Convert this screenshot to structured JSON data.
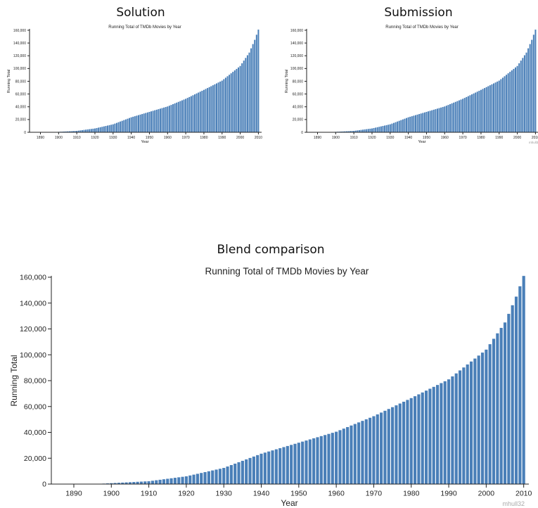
{
  "panels": {
    "solution": "Solution",
    "submission": "Submission",
    "blend": "Blend comparison"
  },
  "watermark": "mhull32",
  "colors": {
    "bar": "#4a7fb8",
    "bar_stroke": "#ffffff",
    "axis": "#222222"
  },
  "chart_data": [
    {
      "id": "solution",
      "type": "bar",
      "title": "Running Total of TMDb Movies by Year",
      "xlabel": "Year",
      "ylabel": "Running Total",
      "xlim": [
        1884,
        2011
      ],
      "ylim": [
        0,
        160000
      ],
      "xticks": [
        1890,
        1900,
        1910,
        1920,
        1930,
        1940,
        1950,
        1960,
        1970,
        1980,
        1990,
        2000,
        2010
      ],
      "yticks": [
        0,
        20000,
        40000,
        60000,
        80000,
        100000,
        120000,
        140000,
        160000
      ],
      "anchors": [
        [
          1890,
          0
        ],
        [
          1897,
          200
        ],
        [
          1900,
          700
        ],
        [
          1910,
          2200
        ],
        [
          1920,
          6000
        ],
        [
          1930,
          12500
        ],
        [
          1940,
          23500
        ],
        [
          1950,
          32000
        ],
        [
          1960,
          40500
        ],
        [
          1970,
          52500
        ],
        [
          1980,
          66500
        ],
        [
          1990,
          81000
        ],
        [
          2000,
          104000
        ],
        [
          2005,
          125000
        ],
        [
          2008,
          145000
        ],
        [
          2010,
          161000
        ]
      ],
      "grid": false
    },
    {
      "id": "submission",
      "type": "bar",
      "title": "Running Total of TMDb Movies by Year",
      "xlabel": "Year",
      "ylabel": "Running Total",
      "xlim": [
        1884,
        2011
      ],
      "ylim": [
        0,
        160000
      ],
      "xticks": [
        1890,
        1900,
        1910,
        1920,
        1930,
        1940,
        1950,
        1960,
        1970,
        1980,
        1990,
        2000,
        2010
      ],
      "yticks": [
        0,
        20000,
        40000,
        60000,
        80000,
        100000,
        120000,
        140000,
        160000
      ],
      "anchors": [
        [
          1890,
          0
        ],
        [
          1897,
          200
        ],
        [
          1900,
          700
        ],
        [
          1910,
          2200
        ],
        [
          1920,
          6000
        ],
        [
          1930,
          12500
        ],
        [
          1940,
          23500
        ],
        [
          1950,
          32000
        ],
        [
          1960,
          40500
        ],
        [
          1970,
          52500
        ],
        [
          1980,
          66500
        ],
        [
          1990,
          81000
        ],
        [
          2000,
          104000
        ],
        [
          2005,
          125000
        ],
        [
          2008,
          145000
        ],
        [
          2010,
          161000
        ]
      ],
      "grid": false
    },
    {
      "id": "blend",
      "type": "bar",
      "title": "Running Total of TMDb Movies by Year",
      "xlabel": "Year",
      "ylabel": "Running Total",
      "xlim": [
        1884,
        2011
      ],
      "ylim": [
        0,
        160000
      ],
      "xticks": [
        1890,
        1900,
        1910,
        1920,
        1930,
        1940,
        1950,
        1960,
        1970,
        1980,
        1990,
        2000,
        2010
      ],
      "yticks": [
        0,
        20000,
        40000,
        60000,
        80000,
        100000,
        120000,
        140000,
        160000
      ],
      "anchors": [
        [
          1890,
          0
        ],
        [
          1897,
          200
        ],
        [
          1900,
          700
        ],
        [
          1910,
          2200
        ],
        [
          1920,
          6000
        ],
        [
          1930,
          12500
        ],
        [
          1940,
          23500
        ],
        [
          1950,
          32000
        ],
        [
          1960,
          40500
        ],
        [
          1970,
          52500
        ],
        [
          1980,
          66500
        ],
        [
          1990,
          81000
        ],
        [
          2000,
          104000
        ],
        [
          2005,
          125000
        ],
        [
          2008,
          145000
        ],
        [
          2010,
          161000
        ]
      ],
      "grid": false
    }
  ]
}
